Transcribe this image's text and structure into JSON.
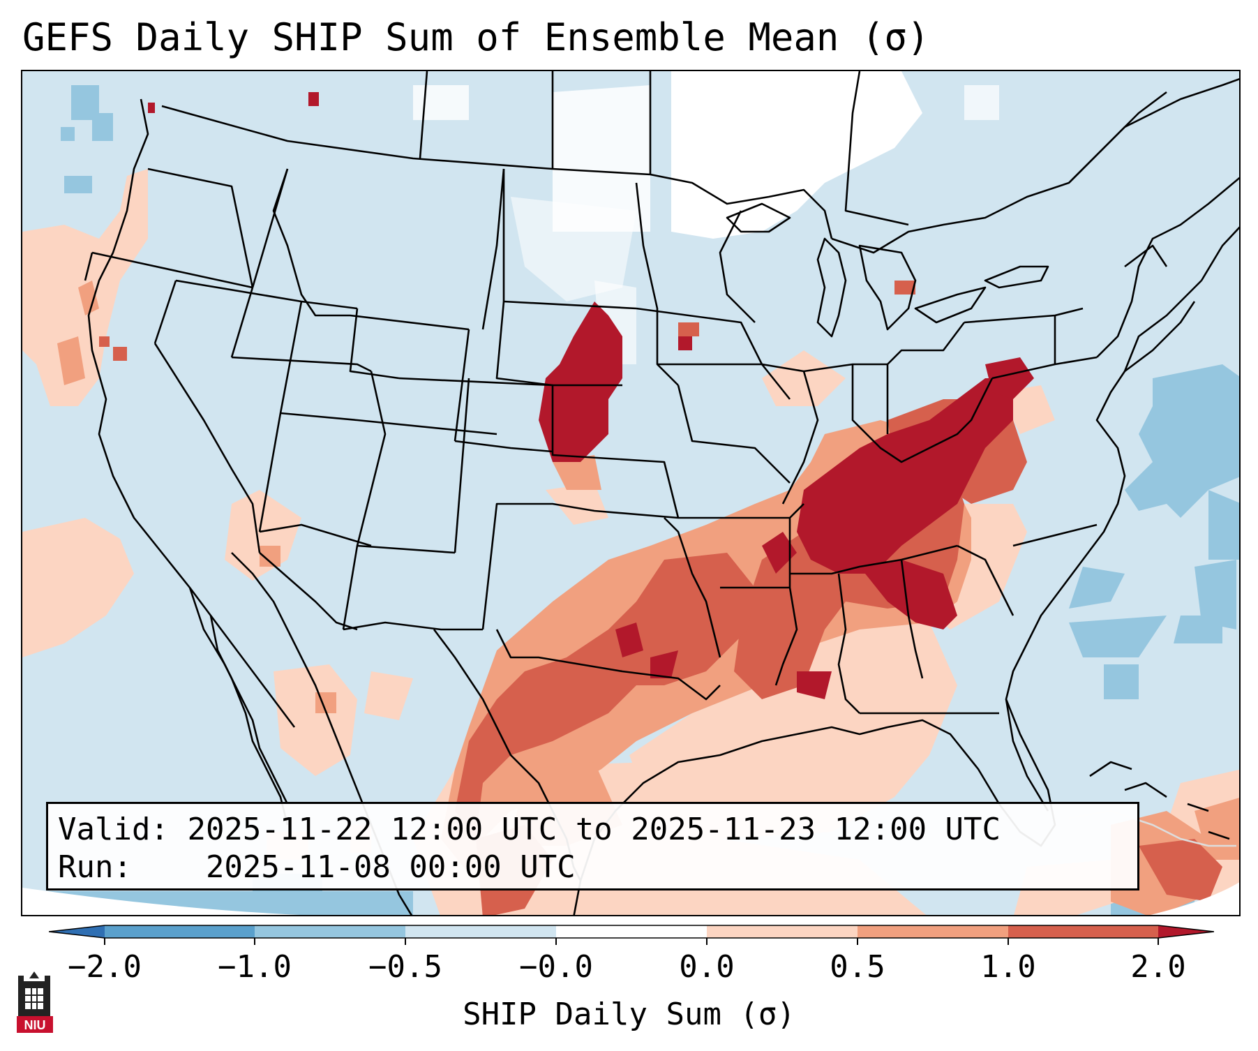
{
  "title": "GEFS Daily SHIP Sum of Ensemble Mean (σ)",
  "info": {
    "valid_label": "Valid:",
    "valid_value": "2025-11-22 12:00 UTC to 2025-11-23 12:00 UTC",
    "run_label": "Run:",
    "run_value": "2025-11-08 00:00 UTC"
  },
  "colorbar": {
    "label": "SHIP Daily Sum (σ)",
    "ticks": [
      "−2.0",
      "−1.0",
      "−0.5",
      "−0.0",
      "0.0",
      "0.5",
      "1.0",
      "2.0"
    ],
    "colors": [
      "#2f6fb3",
      "#5aa0cc",
      "#95c6df",
      "#d1e5f0",
      "#ffffff",
      "#fcd5c2",
      "#f1a07f",
      "#d6604d",
      "#b2182b"
    ]
  },
  "logo": {
    "text": "NIU",
    "icon": "niu-castle-icon"
  },
  "map": {
    "background_color": "#d1e5f0",
    "ocean_color": "#d1e5f0",
    "border_color": "#000000"
  }
}
